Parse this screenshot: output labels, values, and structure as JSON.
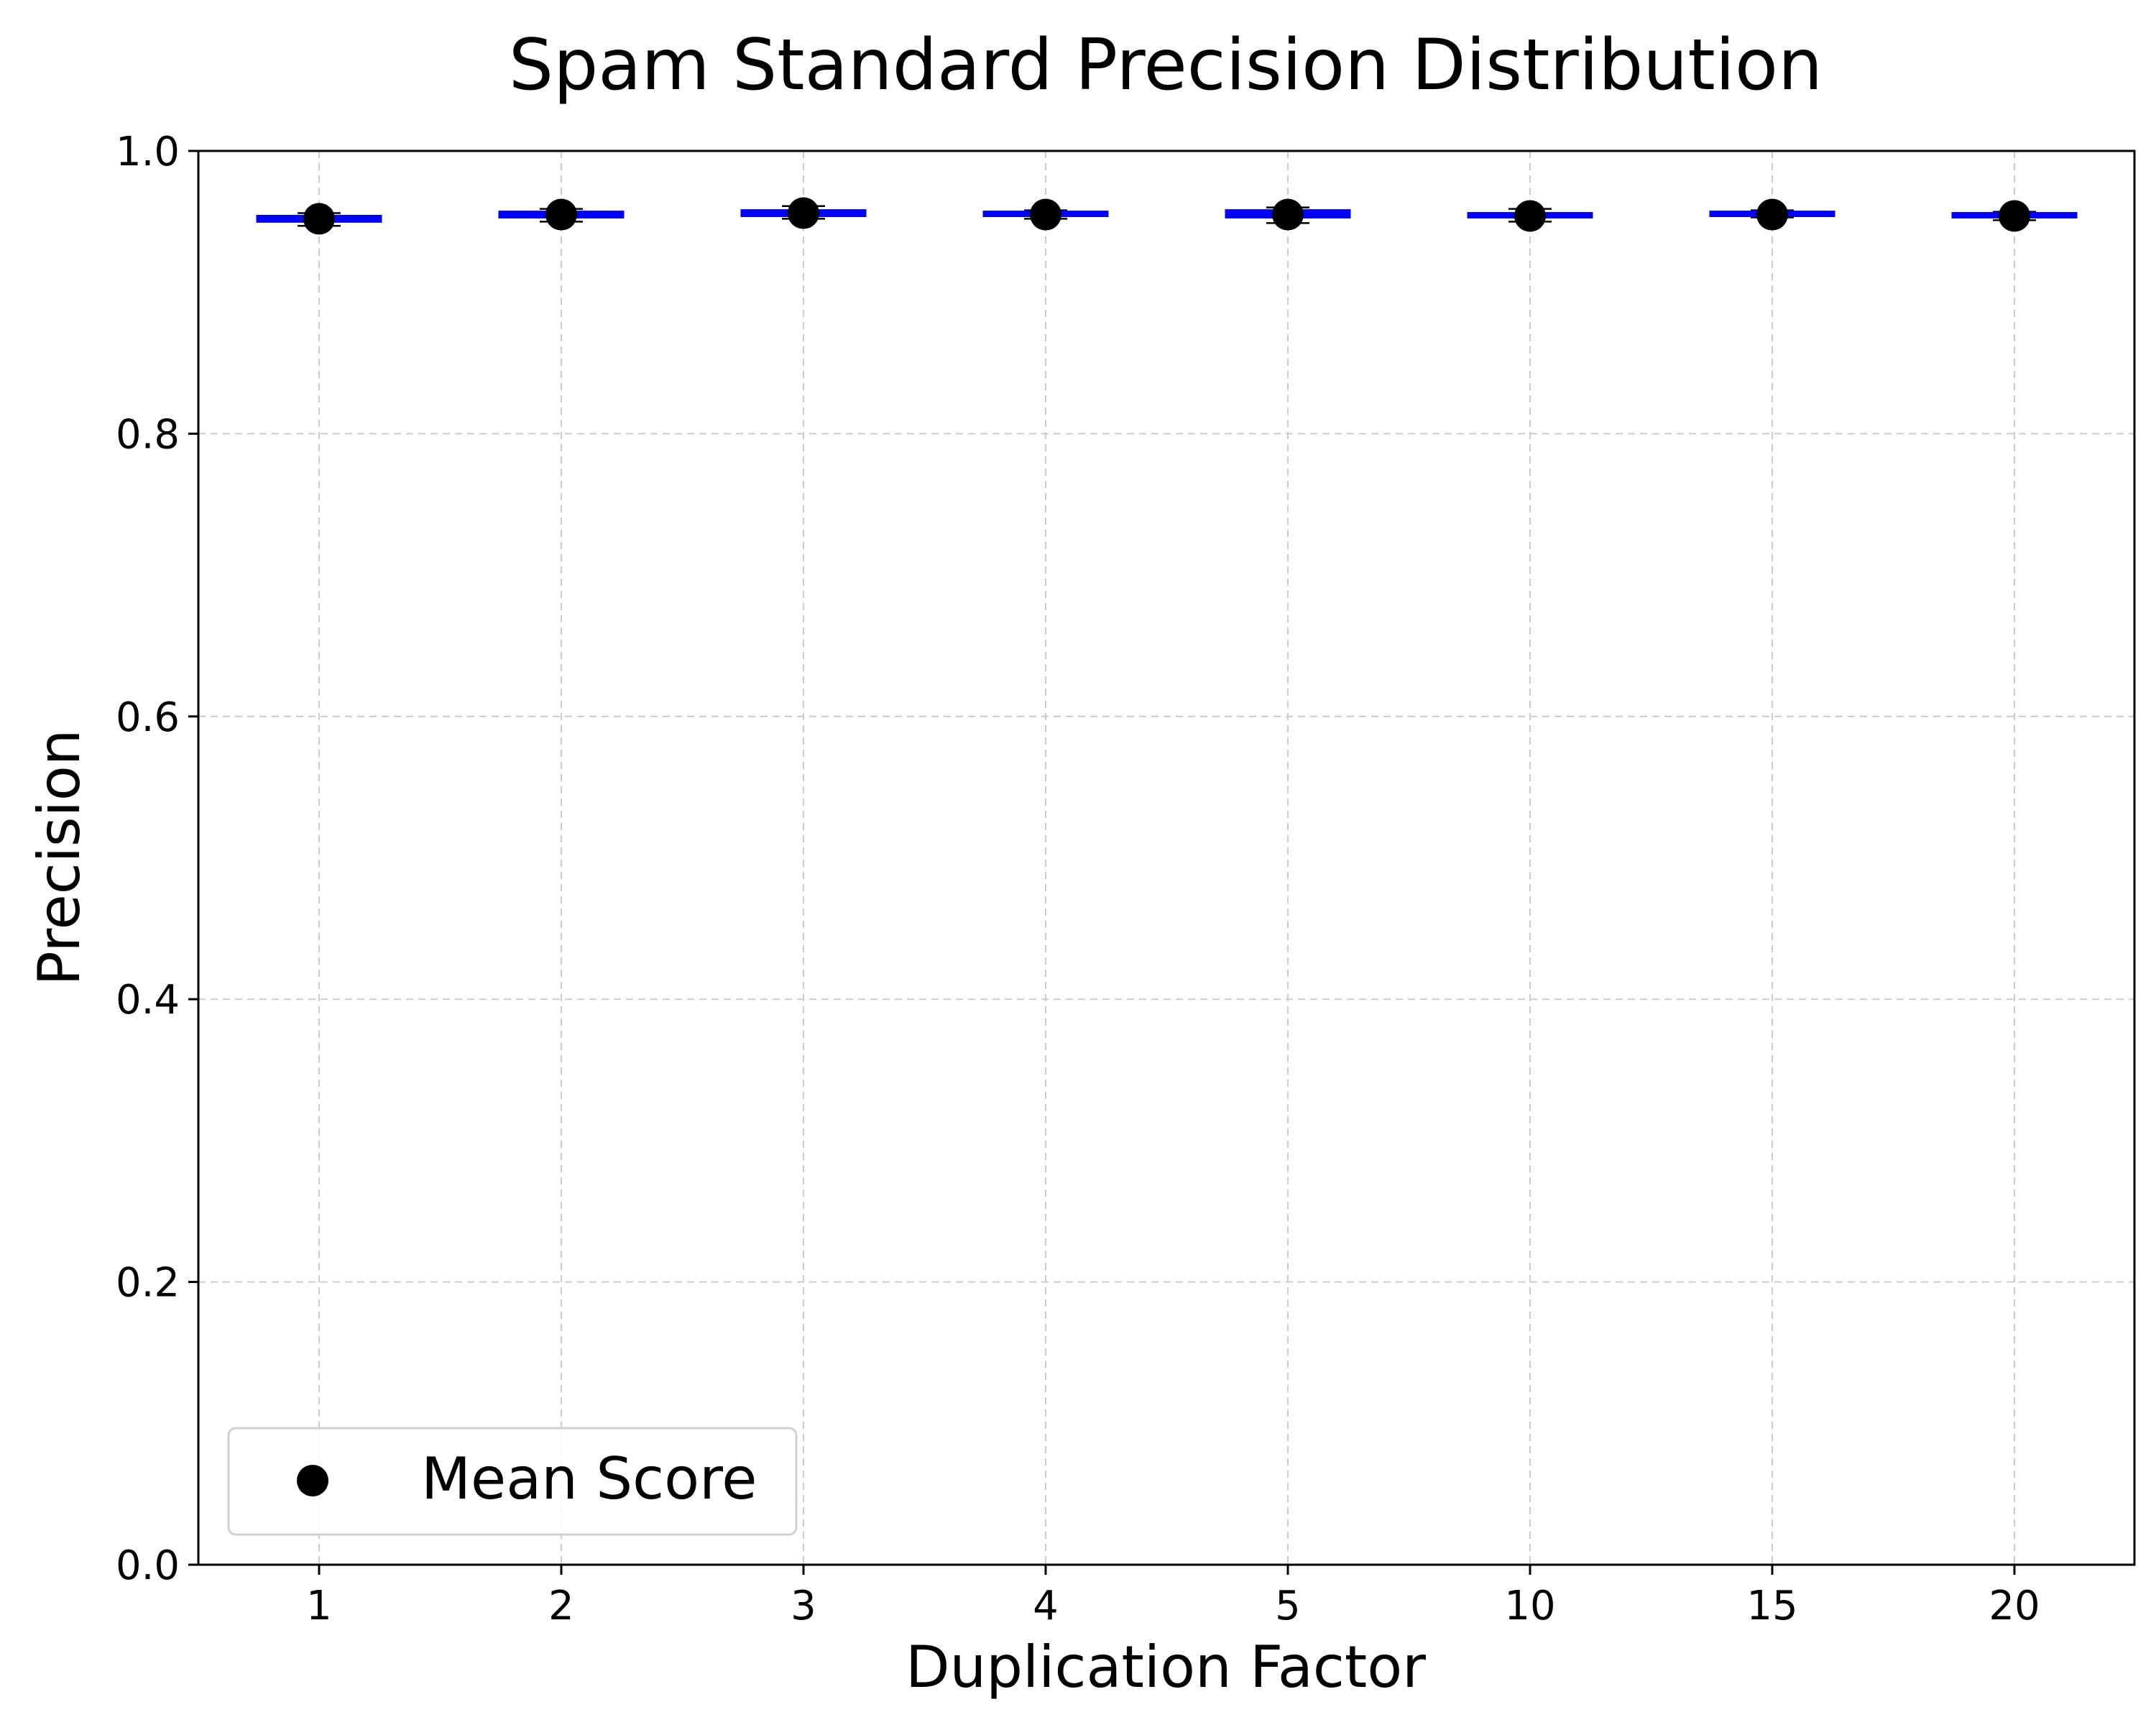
{
  "chart_data": {
    "type": "box",
    "title": "Spam Standard Precision Distribution",
    "xlabel": "Duplication Factor",
    "ylabel": "Precision",
    "categories": [
      "1",
      "2",
      "3",
      "4",
      "5",
      "10",
      "15",
      "20"
    ],
    "ylim": [
      0,
      1
    ],
    "yticks": [
      "0.0",
      "0.2",
      "0.4",
      "0.6",
      "0.8",
      "1.0"
    ],
    "grid": true,
    "legend": {
      "placement": "lower-left",
      "entries": [
        "Mean Score"
      ]
    },
    "series": [
      {
        "name": "Mean Score",
        "values": [
          0.952,
          0.955,
          0.956,
          0.955,
          0.955,
          0.954,
          0.955,
          0.954
        ]
      }
    ],
    "boxes": [
      {
        "category": "1",
        "whisker_low": 0.947,
        "q1": 0.95,
        "median": 0.952,
        "q3": 0.954,
        "whisker_high": 0.956
      },
      {
        "category": "2",
        "whisker_low": 0.95,
        "q1": 0.953,
        "median": 0.955,
        "q3": 0.957,
        "whisker_high": 0.959
      },
      {
        "category": "3",
        "whisker_low": 0.952,
        "q1": 0.954,
        "median": 0.956,
        "q3": 0.958,
        "whisker_high": 0.961
      },
      {
        "category": "4",
        "whisker_low": 0.952,
        "q1": 0.954,
        "median": 0.955,
        "q3": 0.957,
        "whisker_high": 0.958
      },
      {
        "category": "5",
        "whisker_low": 0.949,
        "q1": 0.953,
        "median": 0.955,
        "q3": 0.958,
        "whisker_high": 0.96
      },
      {
        "category": "10",
        "whisker_low": 0.95,
        "q1": 0.953,
        "median": 0.954,
        "q3": 0.956,
        "whisker_high": 0.959
      },
      {
        "category": "15",
        "whisker_low": 0.953,
        "q1": 0.954,
        "median": 0.955,
        "q3": 0.957,
        "whisker_high": 0.958
      },
      {
        "category": "20",
        "whisker_low": 0.951,
        "q1": 0.953,
        "median": 0.954,
        "q3": 0.956,
        "whisker_high": 0.957
      }
    ],
    "colors": {
      "box": "#0000ff",
      "whisker": "#000000",
      "mean_marker": "#000000",
      "grid": "#cccccc"
    }
  }
}
